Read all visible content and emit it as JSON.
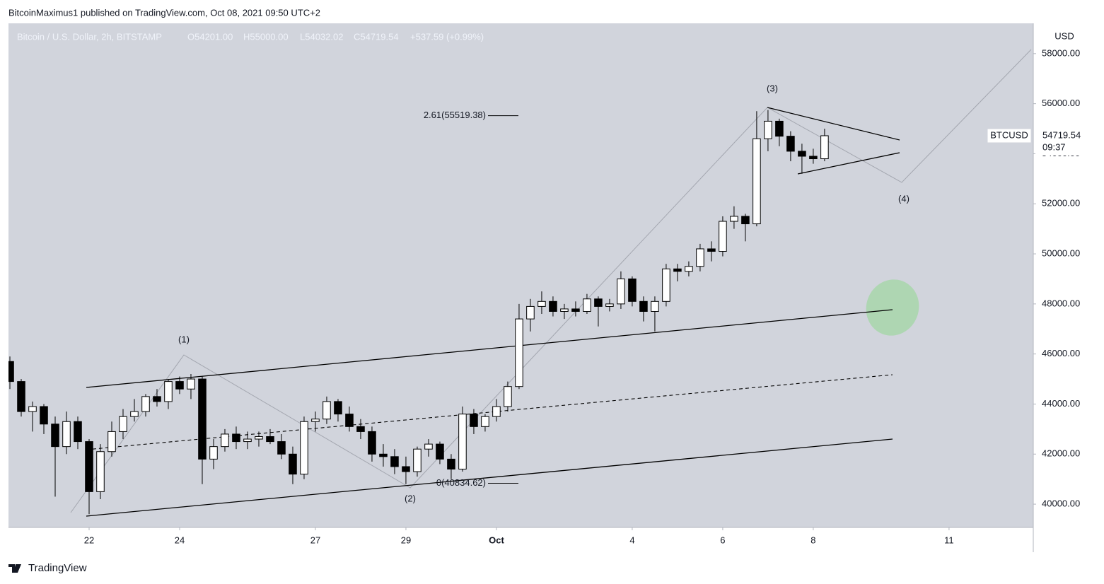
{
  "header": {
    "byline": "BitcoinMaximus1 published on TradingView.com, Oct 08, 2021 09:50 UTC+2"
  },
  "legend": {
    "symbol": "Bitcoin / U.S. Dollar, 2h, BITSTAMP",
    "open": "O54201.00",
    "high": "H55000.00",
    "low": "L54032.02",
    "close": "C54719.54",
    "change": "+537.59 (+0.99%)"
  },
  "footer": {
    "brand": "TradingView"
  },
  "price_tag": {
    "symbol": "BTCUSD",
    "countdown": "09:37"
  },
  "chart_data": {
    "type": "candlestick",
    "y_axis_unit": "USD",
    "xlim": [
      "2021-09-20T05:15",
      "2021-10-12T20:40"
    ],
    "ylim": [
      39070,
      59210
    ],
    "xticks": [
      {
        "value": "2021-09-22T00:00",
        "label": "22"
      },
      {
        "value": "2021-09-24T00:00",
        "label": "24"
      },
      {
        "value": "2021-09-27T00:00",
        "label": "27"
      },
      {
        "value": "2021-09-29T00:00",
        "label": "29"
      },
      {
        "value": "2021-10-01T00:00",
        "label": "Oct"
      },
      {
        "value": "2021-10-04T00:00",
        "label": "4"
      },
      {
        "value": "2021-10-06T00:00",
        "label": "6"
      },
      {
        "value": "2021-10-08T00:00",
        "label": "8"
      },
      {
        "value": "2021-10-11T00:00",
        "label": "11"
      }
    ],
    "yticks": [
      {
        "value": 40000,
        "label": "40000.00"
      },
      {
        "value": 42000,
        "label": "42000.00"
      },
      {
        "value": 44000,
        "label": "44000.00"
      },
      {
        "value": 46000,
        "label": "46000.00"
      },
      {
        "value": 48000,
        "label": "48000.00"
      },
      {
        "value": 50000,
        "label": "50000.00"
      },
      {
        "value": 52000,
        "label": "52000.00"
      },
      {
        "value": 54000,
        "label": "54000.00"
      },
      {
        "value": 56000,
        "label": "56000.00"
      },
      {
        "value": 58000,
        "label": "58000.00"
      }
    ],
    "up_color": "#ffffff",
    "down_color": "#000000",
    "background": "#d1d4dc",
    "fib_levels": [
      {
        "value": 55519.38,
        "label": "2.61(55519.38)"
      },
      {
        "value": 40834.62,
        "label": "0(40834.62)"
      }
    ],
    "wave_labels": [
      "(1)",
      "(2)",
      "(3)",
      "(4)"
    ],
    "x": [
      "2021-09-20T06:00",
      "2021-09-20T12:00",
      "2021-09-20T18:00",
      "2021-09-21T00:00",
      "2021-09-21T06:00",
      "2021-09-21T12:00",
      "2021-09-21T18:00",
      "2021-09-22T00:00",
      "2021-09-22T06:00",
      "2021-09-22T12:00",
      "2021-09-22T18:00",
      "2021-09-23T00:00",
      "2021-09-23T06:00",
      "2021-09-23T12:00",
      "2021-09-23T18:00",
      "2021-09-24T00:00",
      "2021-09-24T06:00",
      "2021-09-24T12:00",
      "2021-09-24T18:00",
      "2021-09-25T00:00",
      "2021-09-25T06:00",
      "2021-09-25T12:00",
      "2021-09-25T18:00",
      "2021-09-26T00:00",
      "2021-09-26T06:00",
      "2021-09-26T12:00",
      "2021-09-26T18:00",
      "2021-09-27T00:00",
      "2021-09-27T06:00",
      "2021-09-27T12:00",
      "2021-09-27T18:00",
      "2021-09-28T00:00",
      "2021-09-28T06:00",
      "2021-09-28T12:00",
      "2021-09-28T18:00",
      "2021-09-29T00:00",
      "2021-09-29T06:00",
      "2021-09-29T12:00",
      "2021-09-29T18:00",
      "2021-09-30T00:00",
      "2021-09-30T06:00",
      "2021-09-30T12:00",
      "2021-09-30T18:00",
      "2021-10-01T00:00",
      "2021-10-01T06:00",
      "2021-10-01T12:00",
      "2021-10-01T18:00",
      "2021-10-02T00:00",
      "2021-10-02T06:00",
      "2021-10-02T12:00",
      "2021-10-02T18:00",
      "2021-10-03T00:00",
      "2021-10-03T06:00",
      "2021-10-03T12:00",
      "2021-10-03T18:00",
      "2021-10-04T00:00",
      "2021-10-04T06:00",
      "2021-10-04T12:00",
      "2021-10-04T18:00",
      "2021-10-05T00:00",
      "2021-10-05T06:00",
      "2021-10-05T12:00",
      "2021-10-05T18:00",
      "2021-10-06T00:00",
      "2021-10-06T06:00",
      "2021-10-06T12:00",
      "2021-10-06T18:00",
      "2021-10-07T00:00",
      "2021-10-07T06:00",
      "2021-10-07T12:00",
      "2021-10-07T18:00",
      "2021-10-08T00:00",
      "2021-10-08T06:00"
    ],
    "open": [
      45700,
      44900,
      43700,
      43900,
      43200,
      42300,
      43300,
      42500,
      40500,
      42100,
      42900,
      43500,
      43700,
      44300,
      44100,
      44900,
      44600,
      45000,
      41800,
      42300,
      42800,
      42500,
      42600,
      42700,
      42500,
      42000,
      41200,
      43300,
      43400,
      44100,
      43600,
      43100,
      42900,
      42000,
      41900,
      41500,
      41300,
      42200,
      42400,
      41800,
      41400,
      43600,
      43100,
      43500,
      43900,
      44700,
      47400,
      47900,
      48100,
      47700,
      47800,
      47700,
      48200,
      47900,
      48000,
      49000,
      48100,
      47700,
      48100,
      49400,
      49300,
      49500,
      50200,
      50100,
      51300,
      51500,
      51200,
      54600,
      55300,
      54700,
      54100,
      53900,
      53800
    ],
    "high": [
      45900,
      45000,
      44100,
      44000,
      43500,
      43700,
      43500,
      42600,
      42400,
      43300,
      43800,
      44200,
      44400,
      44600,
      45000,
      45100,
      45200,
      45100,
      42600,
      43000,
      43100,
      42900,
      42900,
      43000,
      42800,
      42300,
      43500,
      43700,
      44300,
      44200,
      43900,
      43400,
      43100,
      42400,
      42200,
      41900,
      42300,
      42600,
      42500,
      42000,
      43900,
      43800,
      43600,
      44200,
      44900,
      48000,
      48200,
      48500,
      48300,
      48000,
      48100,
      48400,
      48300,
      48200,
      49300,
      49100,
      48300,
      48300,
      49600,
      49600,
      49700,
      50400,
      50500,
      51500,
      51900,
      51600,
      55700,
      55750,
      55400,
      54900,
      54400,
      54200,
      55000
    ],
    "low": [
      44600,
      43500,
      42900,
      42800,
      40300,
      42000,
      42200,
      39600,
      40200,
      41900,
      42600,
      43300,
      43500,
      43900,
      43800,
      44400,
      44200,
      40800,
      41400,
      42100,
      42200,
      42200,
      42300,
      42400,
      41800,
      40800,
      41000,
      42900,
      43200,
      43300,
      42900,
      42600,
      41700,
      41500,
      41200,
      40800,
      41100,
      41900,
      41600,
      41000,
      41300,
      42800,
      42900,
      43300,
      43700,
      44600,
      46900,
      47600,
      47500,
      47400,
      47500,
      47600,
      47100,
      47700,
      47800,
      47900,
      47300,
      46900,
      47900,
      48900,
      49100,
      49300,
      49700,
      49900,
      51000,
      50500,
      51100,
      54100,
      54300,
      53700,
      53200,
      53600,
      53700
    ],
    "close": [
      44900,
      43700,
      43900,
      43200,
      42300,
      43300,
      42500,
      40500,
      42100,
      42900,
      43500,
      43700,
      44300,
      44100,
      44900,
      44600,
      45000,
      41800,
      42300,
      42800,
      42500,
      42600,
      42700,
      42500,
      42000,
      41200,
      43300,
      43400,
      44100,
      43600,
      43100,
      42900,
      42000,
      41900,
      41500,
      41300,
      42200,
      42400,
      41800,
      41400,
      43600,
      43100,
      43500,
      43900,
      44700,
      47400,
      47900,
      48100,
      47700,
      47800,
      47700,
      48200,
      47900,
      48000,
      49000,
      48100,
      47700,
      48100,
      49400,
      49300,
      49500,
      50200,
      50100,
      51300,
      51500,
      51200,
      54600,
      55300,
      54700,
      54100,
      53900,
      53800,
      54719.54
    ]
  }
}
